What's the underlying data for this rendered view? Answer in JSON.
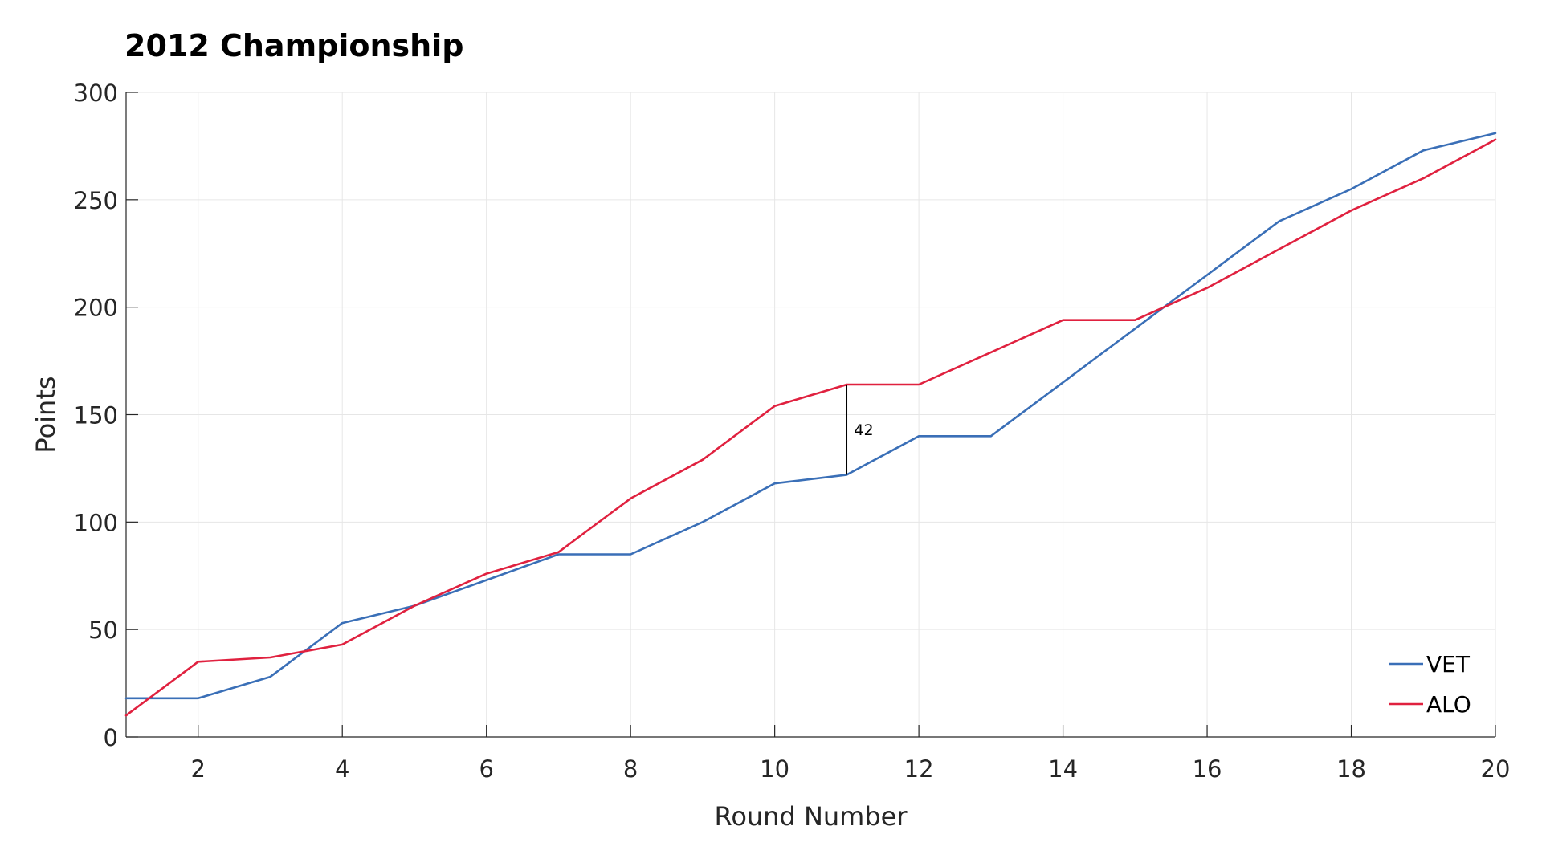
{
  "chart_data": {
    "type": "line",
    "title": "2012 Championship",
    "xlabel": "Round Number",
    "ylabel": "Points",
    "xlim": [
      1,
      20
    ],
    "ylim": [
      0,
      300
    ],
    "xticks": [
      2,
      4,
      6,
      8,
      10,
      12,
      14,
      16,
      18,
      20
    ],
    "yticks": [
      0,
      50,
      100,
      150,
      200,
      250,
      300
    ],
    "grid": true,
    "legend_position": "bottom-right",
    "x": [
      1,
      2,
      3,
      4,
      5,
      6,
      7,
      8,
      9,
      10,
      11,
      12,
      13,
      14,
      15,
      16,
      17,
      18,
      19,
      20
    ],
    "series": [
      {
        "name": "VET",
        "color": "#3a6fb7",
        "values": [
          18,
          18,
          28,
          53,
          61,
          73,
          85,
          85,
          100,
          118,
          122,
          140,
          140,
          165,
          190,
          215,
          240,
          255,
          273,
          281
        ]
      },
      {
        "name": "ALO",
        "color": "#e0213f",
        "values": [
          10,
          35,
          37,
          43,
          61,
          76,
          86,
          111,
          129,
          154,
          164,
          164,
          179,
          194,
          194,
          209,
          227,
          245,
          260,
          278
        ]
      }
    ],
    "annotations": [
      {
        "type": "gap",
        "x": 11,
        "from": 122,
        "to": 164,
        "label": "42"
      }
    ]
  }
}
